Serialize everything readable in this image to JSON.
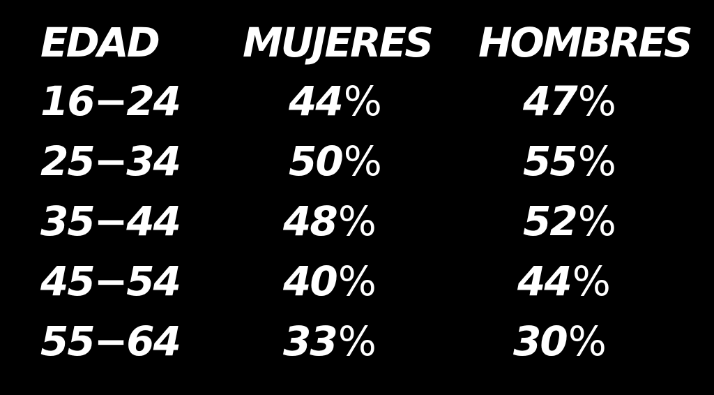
{
  "chart_data": {
    "type": "table",
    "columns": [
      "EDAD",
      "MUJERES",
      "HOMBRES"
    ],
    "rows": [
      {
        "edad": "16−24",
        "mujeres": "44%",
        "hombres": "47%"
      },
      {
        "edad": "25−34",
        "mujeres": "50%",
        "hombres": "55%"
      },
      {
        "edad": "35−44",
        "mujeres": "48%",
        "hombres": "52%"
      },
      {
        "edad": "45−54",
        "mujeres": "40%",
        "hombres": "44%"
      },
      {
        "edad": "55−64",
        "mujeres": "33%",
        "hombres": "30%"
      }
    ],
    "colors": {
      "background": "#000000",
      "text": "#ffffff"
    }
  }
}
